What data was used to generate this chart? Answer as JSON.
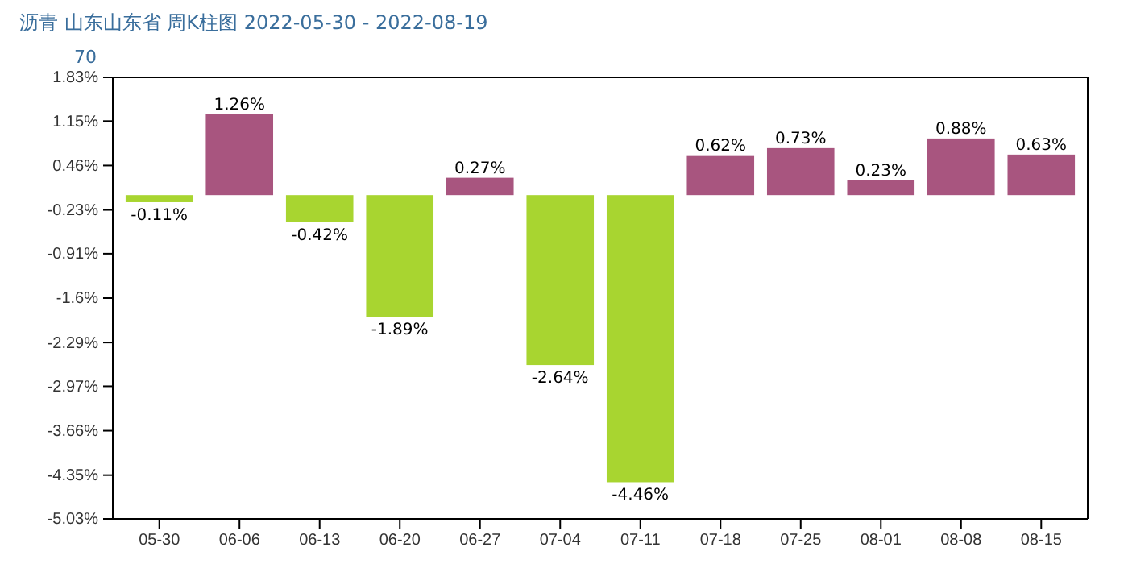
{
  "chart_data": {
    "type": "bar",
    "title": "沥青  山东山东省  周K柱图  2022-05-30 - 2022-08-19",
    "subtitle": "70",
    "categories": [
      "05-30",
      "06-06",
      "06-13",
      "06-20",
      "06-27",
      "07-04",
      "07-11",
      "07-18",
      "07-25",
      "08-01",
      "08-08",
      "08-15"
    ],
    "values": [
      -0.11,
      1.26,
      -0.42,
      -1.89,
      0.27,
      -2.64,
      -4.46,
      0.62,
      0.73,
      0.23,
      0.88,
      0.63
    ],
    "colors": [
      "#a8d530",
      "#a8557f",
      "#a8d530",
      "#a8d530",
      "#a8557f",
      "#a8d530",
      "#a8d530",
      "#a8557f",
      "#a8557f",
      "#a8557f",
      "#a8557f",
      "#a8557f"
    ],
    "value_labels": [
      "-0.11%",
      "1.26%",
      "-0.42%",
      "-1.89%",
      "0.27%",
      "-2.64%",
      "-4.46%",
      "0.62%",
      "0.73%",
      "0.23%",
      "0.88%",
      "0.63%"
    ],
    "ylim": [
      -5.03,
      1.83
    ],
    "yticks": [
      {
        "value": 1.83,
        "label": "1.83%"
      },
      {
        "value": 1.15,
        "label": "1.15%"
      },
      {
        "value": 0.46,
        "label": "0.46%"
      },
      {
        "value": -0.23,
        "label": "-0.23%"
      },
      {
        "value": -0.91,
        "label": "-0.91%"
      },
      {
        "value": -1.6,
        "label": "-1.6%"
      },
      {
        "value": -2.29,
        "label": "-2.29%"
      },
      {
        "value": -2.97,
        "label": "-2.97%"
      },
      {
        "value": -3.66,
        "label": "-3.66%"
      },
      {
        "value": -4.35,
        "label": "-4.35%"
      },
      {
        "value": -5.03,
        "label": "-5.03%"
      }
    ]
  }
}
